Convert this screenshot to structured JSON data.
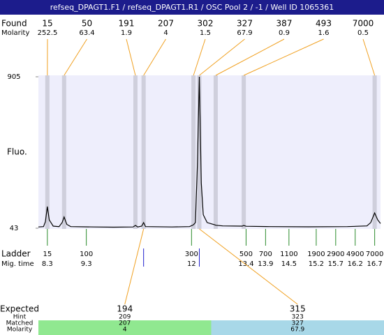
{
  "header": {
    "title": "refseq_DPAGT1.F1 / refseq_DPAGT1.R1 / OSC Pool 2 / -1 / Well ID 1065361"
  },
  "found": {
    "label": "Found",
    "sub_label": "Molarity",
    "peaks": [
      {
        "size": 15,
        "molarity": 252.5,
        "time": 8.3
      },
      {
        "size": 50,
        "molarity": 63.4,
        "time": 8.73
      },
      {
        "size": 191,
        "molarity": 1.9,
        "time": 10.56
      },
      {
        "size": 207,
        "molarity": 4,
        "time": 10.77
      },
      {
        "size": 302,
        "molarity": 1.5,
        "time": 12.05
      },
      {
        "size": 327,
        "molarity": 67.9,
        "time": 12.2
      },
      {
        "size": 387,
        "molarity": 0.9,
        "time": 12.62
      },
      {
        "size": 493,
        "molarity": 1.6,
        "time": 13.34
      },
      {
        "size": 7000,
        "molarity": 0.5,
        "time": 16.7
      }
    ]
  },
  "plot": {
    "y_label": "Fluo.",
    "ylim": [
      43,
      905
    ],
    "yticks": [
      905,
      43
    ],
    "xlim": [
      8.07,
      16.85
    ],
    "color": "#000000",
    "trace": {
      "time": [
        8.07,
        8.2,
        8.25,
        8.3,
        8.35,
        8.45,
        8.6,
        8.68,
        8.73,
        8.8,
        8.9,
        9.5,
        10.0,
        10.5,
        10.56,
        10.62,
        10.72,
        10.77,
        10.82,
        11.5,
        11.95,
        12.05,
        12.1,
        12.15,
        12.2,
        12.25,
        12.3,
        12.4,
        12.6,
        12.62,
        12.8,
        13.3,
        13.34,
        13.4,
        14.0,
        15.0,
        16.0,
        16.5,
        16.6,
        16.7,
        16.78,
        16.85
      ],
      "fluo": [
        50,
        52,
        80,
        166,
        90,
        55,
        52,
        75,
        107,
        65,
        52,
        50,
        49,
        50,
        59,
        50,
        55,
        75,
        52,
        50,
        52,
        63,
        75,
        400,
        905,
        300,
        120,
        75,
        62,
        60,
        56,
        55,
        59,
        54,
        52,
        51,
        52,
        56,
        75,
        130,
        90,
        70
      ]
    }
  },
  "ladder": {
    "label": "Ladder",
    "sub_label": "Mig. time",
    "peaks": [
      {
        "size": 15,
        "time": 8.3
      },
      {
        "size": 100,
        "time": 9.3
      },
      {
        "size": 300,
        "time": 12
      },
      {
        "size": 500,
        "time": 13.4
      },
      {
        "size": 700,
        "time": 13.9
      },
      {
        "size": 1100,
        "time": 14.5
      },
      {
        "size": 1900,
        "time": 15.2
      },
      {
        "size": 2900,
        "time": 15.7
      },
      {
        "size": 4900,
        "time": 16.2
      },
      {
        "size": 7000,
        "time": 16.7
      }
    ]
  },
  "expected": {
    "label": "Expected",
    "row_labels": [
      "Hint",
      "Matched",
      "Molarity"
    ],
    "columns": [
      {
        "expected": 194,
        "hint": 209,
        "matched": 207,
        "molarity": 4,
        "color": "#90e890"
      },
      {
        "expected": 315,
        "hint": 323,
        "matched": 327,
        "molarity": 67.9,
        "color": "#a8d8e8"
      }
    ]
  }
}
